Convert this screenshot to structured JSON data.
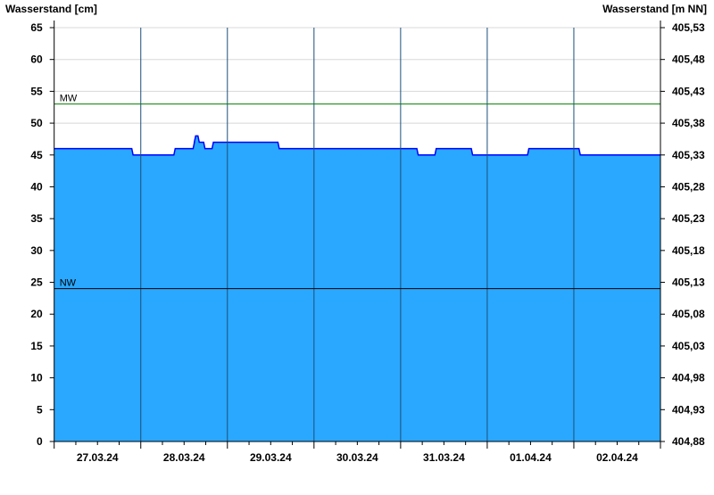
{
  "chart_data": {
    "type": "area",
    "ylabel_left": "Wasserstand [cm]",
    "ylabel_right": "Wasserstand [m NN]",
    "ylim": [
      0,
      65
    ],
    "y_ticks_left": [
      "0",
      "5",
      "10",
      "15",
      "20",
      "25",
      "30",
      "35",
      "40",
      "45",
      "50",
      "55",
      "60",
      "65"
    ],
    "y_ticks_right": [
      "404,88",
      "404,93",
      "404,98",
      "405,03",
      "405,08",
      "405,13",
      "405,18",
      "405,23",
      "405,28",
      "405,33",
      "405,38",
      "405,43",
      "405,48",
      "405,53"
    ],
    "xlim": [
      "2024-03-27T00:00",
      "2024-04-03T00:00"
    ],
    "x_ticks": [
      "27.03.24",
      "28.03.24",
      "29.03.24",
      "30.03.24",
      "31.03.24",
      "01.04.24",
      "02.04.24"
    ],
    "grid": true,
    "reference_lines": [
      {
        "label": "MW",
        "value": 53,
        "color": "#008000"
      },
      {
        "label": "NW",
        "value": 24,
        "color": "#000000"
      }
    ],
    "colors": {
      "fill": "#2aa8ff",
      "line": "#0000ff",
      "grid": "#d8d8d8",
      "day_lines": "#1a4f7a"
    },
    "series": [
      {
        "points": [
          [
            "2024-03-27T00:00",
            46
          ],
          [
            "2024-03-27T21:30",
            45
          ],
          [
            "2024-03-28T09:10",
            46
          ],
          [
            "2024-03-28T14:30",
            47
          ],
          [
            "2024-03-28T14:50",
            48
          ],
          [
            "2024-03-28T15:50",
            47
          ],
          [
            "2024-03-28T17:25",
            46
          ],
          [
            "2024-03-28T19:45",
            47
          ],
          [
            "2024-03-29T14:00",
            46
          ],
          [
            "2024-03-31T04:30",
            45
          ],
          [
            "2024-03-31T09:30",
            46
          ],
          [
            "2024-03-31T19:35",
            45
          ],
          [
            "2024-04-01T11:10",
            46
          ],
          [
            "2024-04-02T01:25",
            45
          ],
          [
            "2024-04-03T00:00",
            45
          ]
        ]
      }
    ]
  }
}
